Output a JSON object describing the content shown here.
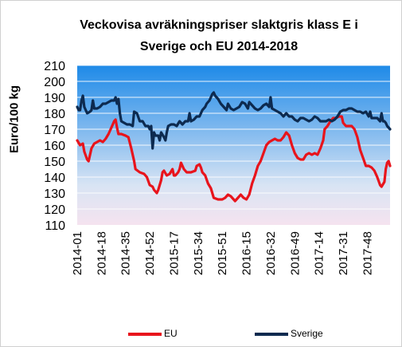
{
  "chart_data": {
    "type": "line",
    "title_lines": [
      "Veckovisa avräkningspriser slaktgris klass E i",
      "Sverige och EU 2014-2018"
    ],
    "ylabel": "Euro/100 kg",
    "xlabel": "",
    "ylim": [
      110,
      210
    ],
    "yticks": [
      110,
      120,
      130,
      140,
      150,
      160,
      170,
      180,
      190,
      200,
      210
    ],
    "x_tick_labels": [
      "2014-01",
      "2014-18",
      "2014-35",
      "2014-52",
      "2015-17",
      "2015-34",
      "2015-51",
      "2016-15",
      "2016-32",
      "2016-49",
      "2017-14",
      "2017-31",
      "2017-48"
    ],
    "weeks_between_ticks": 17,
    "x_count": 221,
    "legend_position": "bottom",
    "series": [
      {
        "name": "EU",
        "color": "#e8141c",
        "points": [
          [
            0,
            163
          ],
          [
            2,
            160
          ],
          [
            4,
            161
          ],
          [
            5,
            156
          ],
          [
            7,
            151
          ],
          [
            8,
            150
          ],
          [
            10,
            158
          ],
          [
            12,
            161
          ],
          [
            14,
            162
          ],
          [
            16,
            163
          ],
          [
            18,
            162
          ],
          [
            20,
            164
          ],
          [
            22,
            167
          ],
          [
            24,
            171
          ],
          [
            26,
            175
          ],
          [
            27,
            176
          ],
          [
            28,
            171
          ],
          [
            29,
            167
          ],
          [
            31,
            167
          ],
          [
            34,
            166
          ],
          [
            36,
            165
          ],
          [
            38,
            158
          ],
          [
            40,
            150
          ],
          [
            41,
            145
          ],
          [
            44,
            143
          ],
          [
            47,
            142
          ],
          [
            49,
            140
          ],
          [
            51,
            135
          ],
          [
            53,
            134
          ],
          [
            54,
            132
          ],
          [
            56,
            130
          ],
          [
            57,
            132
          ],
          [
            59,
            138
          ],
          [
            60,
            143
          ],
          [
            61,
            144
          ],
          [
            63,
            141
          ],
          [
            65,
            142
          ],
          [
            67,
            145
          ],
          [
            68,
            141
          ],
          [
            69,
            141
          ],
          [
            71,
            143
          ],
          [
            72,
            145
          ],
          [
            73,
            149
          ],
          [
            75,
            145
          ],
          [
            77,
            143
          ],
          [
            80,
            143
          ],
          [
            83,
            144
          ],
          [
            84,
            147
          ],
          [
            86,
            148
          ],
          [
            87,
            146
          ],
          [
            88,
            143
          ],
          [
            90,
            141
          ],
          [
            92,
            136
          ],
          [
            94,
            133
          ],
          [
            96,
            127
          ],
          [
            99,
            126
          ],
          [
            102,
            126
          ],
          [
            104,
            127
          ],
          [
            106,
            129
          ],
          [
            108,
            128
          ],
          [
            110,
            126
          ],
          [
            111,
            125
          ],
          [
            113,
            127
          ],
          [
            115,
            129
          ],
          [
            117,
            127
          ],
          [
            119,
            126
          ],
          [
            121,
            129
          ],
          [
            123,
            136
          ],
          [
            125,
            141
          ],
          [
            127,
            147
          ],
          [
            129,
            150
          ],
          [
            131,
            155
          ],
          [
            133,
            160
          ],
          [
            135,
            162
          ],
          [
            137,
            163
          ],
          [
            139,
            164
          ],
          [
            141,
            163
          ],
          [
            143,
            163
          ],
          [
            145,
            165
          ],
          [
            147,
            168
          ],
          [
            149,
            166
          ],
          [
            151,
            160
          ],
          [
            153,
            155
          ],
          [
            155,
            152
          ],
          [
            157,
            151
          ],
          [
            159,
            151
          ],
          [
            161,
            154
          ],
          [
            163,
            155
          ],
          [
            165,
            154
          ],
          [
            167,
            155
          ],
          [
            169,
            154
          ],
          [
            171,
            158
          ],
          [
            173,
            163
          ],
          [
            174,
            170
          ],
          [
            176,
            172
          ],
          [
            178,
            175
          ],
          [
            180,
            177
          ],
          [
            182,
            177
          ],
          [
            184,
            178
          ],
          [
            186,
            178
          ],
          [
            187,
            174
          ],
          [
            189,
            172
          ],
          [
            191,
            172
          ],
          [
            193,
            172
          ],
          [
            195,
            170
          ],
          [
            197,
            165
          ],
          [
            199,
            157
          ],
          [
            201,
            152
          ],
          [
            203,
            147
          ],
          [
            205,
            147
          ],
          [
            207,
            146
          ],
          [
            209,
            144
          ],
          [
            211,
            140
          ],
          [
            213,
            135
          ],
          [
            214,
            134
          ],
          [
            216,
            137
          ],
          [
            217,
            145
          ],
          [
            218,
            149
          ],
          [
            219,
            150
          ],
          [
            220,
            147
          ]
        ]
      },
      {
        "name": "Sverige",
        "color": "#0d2a4f",
        "points": [
          [
            0,
            184
          ],
          [
            1,
            182
          ],
          [
            2,
            182
          ],
          [
            3,
            188
          ],
          [
            4,
            191
          ],
          [
            5,
            184
          ],
          [
            6,
            182
          ],
          [
            7,
            180
          ],
          [
            9,
            181
          ],
          [
            10,
            182
          ],
          [
            11,
            188
          ],
          [
            12,
            183
          ],
          [
            14,
            183
          ],
          [
            16,
            184
          ],
          [
            18,
            186
          ],
          [
            20,
            186
          ],
          [
            22,
            187
          ],
          [
            24,
            188
          ],
          [
            26,
            188
          ],
          [
            27,
            190
          ],
          [
            28,
            186
          ],
          [
            29,
            189
          ],
          [
            30,
            180
          ],
          [
            31,
            175
          ],
          [
            33,
            174
          ],
          [
            35,
            173
          ],
          [
            37,
            173
          ],
          [
            39,
            172
          ],
          [
            40,
            181
          ],
          [
            42,
            180
          ],
          [
            44,
            175
          ],
          [
            46,
            175
          ],
          [
            48,
            172
          ],
          [
            50,
            172
          ],
          [
            51,
            170
          ],
          [
            52,
            172
          ],
          [
            53,
            158
          ],
          [
            54,
            168
          ],
          [
            55,
            166
          ],
          [
            57,
            166
          ],
          [
            58,
            163
          ],
          [
            59,
            168
          ],
          [
            61,
            165
          ],
          [
            62,
            163
          ],
          [
            63,
            168
          ],
          [
            64,
            172
          ],
          [
            66,
            173
          ],
          [
            68,
            173
          ],
          [
            70,
            172
          ],
          [
            72,
            175
          ],
          [
            74,
            173
          ],
          [
            76,
            175
          ],
          [
            78,
            175
          ],
          [
            79,
            180
          ],
          [
            80,
            175
          ],
          [
            82,
            176
          ],
          [
            84,
            178
          ],
          [
            86,
            178
          ],
          [
            88,
            182
          ],
          [
            90,
            184
          ],
          [
            91,
            186
          ],
          [
            93,
            188
          ],
          [
            95,
            192
          ],
          [
            96,
            193
          ],
          [
            97,
            191
          ],
          [
            99,
            189
          ],
          [
            101,
            186
          ],
          [
            103,
            184
          ],
          [
            105,
            182
          ],
          [
            106,
            186
          ],
          [
            108,
            183
          ],
          [
            110,
            182
          ],
          [
            112,
            183
          ],
          [
            114,
            184
          ],
          [
            116,
            187
          ],
          [
            118,
            186
          ],
          [
            120,
            183
          ],
          [
            121,
            187
          ],
          [
            123,
            185
          ],
          [
            125,
            183
          ],
          [
            127,
            182
          ],
          [
            129,
            183
          ],
          [
            131,
            185
          ],
          [
            133,
            186
          ],
          [
            135,
            184
          ],
          [
            136,
            190
          ],
          [
            137,
            183
          ],
          [
            139,
            182
          ],
          [
            141,
            181
          ],
          [
            143,
            180
          ],
          [
            145,
            178
          ],
          [
            147,
            180
          ],
          [
            149,
            178
          ],
          [
            151,
            178
          ],
          [
            153,
            176
          ],
          [
            155,
            175
          ],
          [
            157,
            177
          ],
          [
            159,
            177
          ],
          [
            161,
            176
          ],
          [
            163,
            175
          ],
          [
            165,
            176
          ],
          [
            167,
            178
          ],
          [
            169,
            177
          ],
          [
            171,
            175
          ],
          [
            173,
            175
          ],
          [
            175,
            175
          ],
          [
            177,
            176
          ],
          [
            179,
            175
          ],
          [
            181,
            176
          ],
          [
            183,
            178
          ],
          [
            185,
            181
          ],
          [
            187,
            182
          ],
          [
            189,
            182
          ],
          [
            191,
            183
          ],
          [
            193,
            183
          ],
          [
            195,
            182
          ],
          [
            197,
            181
          ],
          [
            199,
            181
          ],
          [
            201,
            180
          ],
          [
            203,
            181
          ],
          [
            205,
            178
          ],
          [
            206,
            181
          ],
          [
            207,
            177
          ],
          [
            209,
            177
          ],
          [
            211,
            177
          ],
          [
            213,
            175
          ],
          [
            214,
            180
          ],
          [
            215,
            175
          ],
          [
            216,
            175
          ],
          [
            217,
            174
          ],
          [
            218,
            172
          ],
          [
            219,
            171
          ],
          [
            220,
            170
          ]
        ]
      }
    ]
  }
}
